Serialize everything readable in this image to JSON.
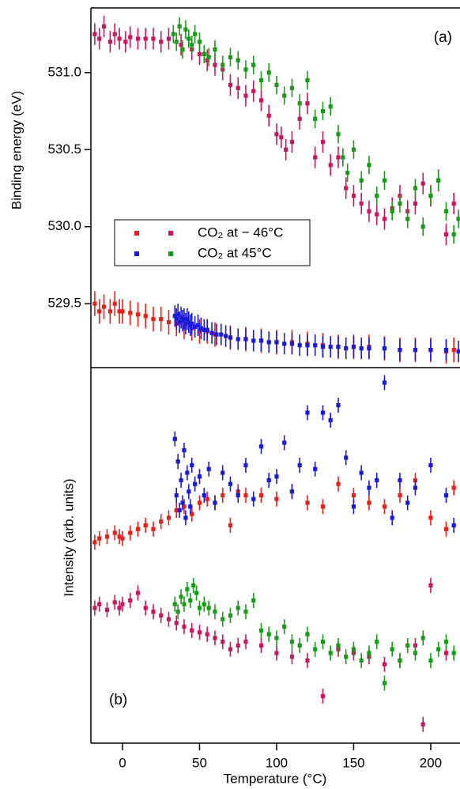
{
  "chart_data": [
    {
      "type": "scatter",
      "ylabel": "Binding energy (eV)",
      "annotation": "(a)",
      "xlim": [
        -20.5,
        219
      ],
      "ylim": [
        529.085,
        531.42
      ],
      "yticks": [
        {
          "value": 529.5,
          "label": "529.5"
        },
        {
          "value": 530.0,
          "label": "530.0"
        },
        {
          "value": 530.5,
          "label": "530.5"
        },
        {
          "value": 531.0,
          "label": "531.0"
        }
      ],
      "series": [
        {
          "name": "CO₂ at − 46°C",
          "color": "#e8201c",
          "error": 0.08,
          "x": [
            -18,
            -15,
            -12,
            -8,
            -5,
            -2,
            0,
            5,
            10,
            15,
            20,
            25,
            30,
            35,
            40,
            45,
            50,
            55,
            60,
            70,
            80,
            90,
            100,
            110,
            120,
            130,
            140,
            150,
            160,
            170,
            180,
            190,
            200,
            210,
            215
          ],
          "values": [
            529.5,
            529.45,
            529.48,
            529.45,
            529.5,
            529.45,
            529.45,
            529.44,
            529.43,
            529.42,
            529.4,
            529.4,
            529.38,
            529.37,
            529.35,
            529.34,
            529.32,
            529.32,
            529.3,
            529.28,
            529.27,
            529.26,
            529.25,
            529.25,
            529.24,
            529.23,
            529.22,
            529.22,
            529.22,
            529.21,
            529.2,
            529.2,
            529.2,
            529.19,
            529.2
          ]
        },
        {
          "name": "CO₂ at − 46°C",
          "color": "#c8175e",
          "error": 0.07,
          "x": [
            -18,
            -15,
            -12,
            -8,
            -5,
            -2,
            2,
            5,
            10,
            15,
            20,
            25,
            30,
            38,
            45,
            50,
            55,
            60,
            65,
            70,
            75,
            80,
            85,
            90,
            95,
            100,
            103,
            106,
            110,
            115,
            120,
            125,
            130,
            135,
            140,
            145,
            150,
            155,
            160,
            165,
            170,
            175,
            180,
            185,
            190,
            195,
            200,
            205,
            210,
            215
          ],
          "values": [
            531.25,
            531.22,
            531.3,
            531.2,
            531.25,
            531.22,
            531.2,
            531.23,
            531.22,
            531.22,
            531.22,
            531.2,
            531.22,
            531.18,
            531.15,
            531.12,
            531.08,
            531.05,
            531.02,
            530.92,
            530.9,
            530.85,
            530.88,
            530.82,
            530.72,
            530.6,
            530.58,
            530.5,
            530.55,
            530.7,
            530.8,
            530.45,
            530.55,
            530.4,
            530.45,
            530.25,
            530.2,
            530.15,
            530.1,
            530.08,
            530.05,
            530.12,
            530.2,
            530.1,
            530.15,
            530.28,
            530.2,
            530.3,
            529.95,
            530.15
          ]
        },
        {
          "name": "CO₂ at 45°C",
          "color": "#1a1adb",
          "error": 0.07,
          "x": [
            34,
            35,
            36,
            37,
            38,
            39,
            40,
            41,
            42,
            43,
            44,
            45,
            47,
            49,
            51,
            53,
            55,
            58,
            61,
            64,
            67,
            70,
            75,
            80,
            85,
            90,
            95,
            100,
            105,
            110,
            115,
            120,
            125,
            130,
            135,
            140,
            145,
            150,
            155,
            160,
            170,
            180,
            190,
            200,
            210,
            218
          ],
          "values": [
            529.42,
            529.4,
            529.43,
            529.38,
            529.41,
            529.39,
            529.4,
            529.37,
            529.4,
            529.38,
            529.36,
            529.37,
            529.35,
            529.36,
            529.34,
            529.33,
            529.33,
            529.31,
            529.3,
            529.3,
            529.29,
            529.28,
            529.27,
            529.27,
            529.26,
            529.26,
            529.25,
            529.25,
            529.24,
            529.24,
            529.23,
            529.23,
            529.23,
            529.22,
            529.22,
            529.22,
            529.21,
            529.22,
            529.21,
            529.21,
            529.21,
            529.2,
            529.2,
            529.2,
            529.2,
            529.19
          ]
        },
        {
          "name": "CO₂ at 45°C",
          "color": "#1a9a1a",
          "error": 0.06,
          "x": [
            33,
            35,
            37,
            39,
            41,
            43,
            45,
            47,
            50,
            53,
            56,
            60,
            65,
            70,
            75,
            80,
            85,
            90,
            95,
            100,
            105,
            110,
            115,
            120,
            125,
            130,
            135,
            140,
            143,
            146,
            150,
            155,
            160,
            165,
            170,
            175,
            180,
            185,
            190,
            195,
            200,
            205,
            210,
            215,
            218
          ],
          "values": [
            531.25,
            531.2,
            531.3,
            531.15,
            531.28,
            531.22,
            531.18,
            531.25,
            531.2,
            531.12,
            531.1,
            531.15,
            531.05,
            531.1,
            531.08,
            531.02,
            531.05,
            530.95,
            531.0,
            530.92,
            530.85,
            530.9,
            530.8,
            530.95,
            530.7,
            530.75,
            530.78,
            530.6,
            530.45,
            530.35,
            530.5,
            530.3,
            530.4,
            530.2,
            530.3,
            530.1,
            530.15,
            530.05,
            530.25,
            530.0,
            530.2,
            530.3,
            530.1,
            529.95,
            530.05
          ]
        }
      ]
    },
    {
      "type": "scatter",
      "ylabel": "Intensity (arb. units)",
      "xlabel": "Temperature (°C)",
      "annotation": "(b)",
      "xlim": [
        -20.5,
        219
      ],
      "ylim": [
        0,
        100
      ],
      "xticks": [
        0,
        50,
        100,
        150,
        200
      ],
      "series": [
        {
          "name": "CO₂ at − 46°C",
          "color": "#e8201c",
          "error": 2,
          "x": [
            -18,
            -15,
            -10,
            -5,
            -2,
            0,
            5,
            10,
            15,
            20,
            25,
            30,
            35,
            40,
            45,
            50,
            55,
            60,
            65,
            70,
            75,
            80,
            90,
            100,
            110,
            120,
            130,
            140,
            150,
            160,
            170,
            180,
            190,
            200,
            210,
            215
          ],
          "values": [
            53.5,
            54.5,
            55,
            56,
            55,
            54.5,
            56,
            57,
            58,
            57,
            59,
            60,
            62,
            63,
            61,
            64,
            65,
            64,
            66,
            58,
            67,
            66,
            66,
            65,
            67,
            64,
            63,
            69,
            66,
            64,
            63,
            66,
            70,
            60,
            57,
            68
          ]
        },
        {
          "name": "CO₂ at − 46°C",
          "color": "#c8175e",
          "error": 2,
          "x": [
            -18,
            -15,
            -10,
            -5,
            -2,
            0,
            5,
            10,
            15,
            20,
            25,
            30,
            35,
            40,
            45,
            50,
            55,
            60,
            65,
            70,
            75,
            80,
            90,
            100,
            110,
            120,
            130,
            140,
            150,
            160,
            170,
            180,
            190,
            195,
            200,
            210
          ],
          "values": [
            36,
            37,
            35.5,
            37.5,
            36,
            37,
            38,
            40,
            36,
            35,
            34,
            33,
            32,
            31,
            30,
            29.5,
            29,
            28,
            27,
            25,
            26,
            27,
            26,
            24,
            23,
            22,
            12.5,
            25,
            24,
            23,
            21,
            22,
            26,
            5,
            42,
            24
          ]
        },
        {
          "name": "CO₂ at 45°C",
          "color": "#1a1adb",
          "error": 2,
          "x": [
            34,
            35,
            36,
            37,
            38,
            39,
            40,
            41,
            42,
            43,
            44,
            45,
            47,
            50,
            53,
            56,
            60,
            65,
            70,
            75,
            80,
            85,
            90,
            95,
            100,
            105,
            110,
            115,
            120,
            125,
            130,
            135,
            140,
            145,
            150,
            155,
            160,
            165,
            170,
            175,
            180,
            185,
            190,
            200,
            210,
            215
          ],
          "values": [
            81,
            66,
            75,
            62,
            70,
            64,
            78,
            60,
            72,
            67,
            63,
            74,
            69,
            71,
            66,
            73,
            64,
            72,
            69,
            66,
            74,
            65,
            79,
            70,
            71,
            80,
            67,
            74,
            88,
            73,
            88,
            86,
            90,
            76,
            63,
            72,
            68,
            70,
            96,
            60,
            70,
            64,
            68,
            74,
            66,
            58
          ]
        },
        {
          "name": "CO₂ at 45°C",
          "color": "#1a9a1a",
          "error": 2,
          "x": [
            34,
            36,
            38,
            40,
            42,
            44,
            46,
            48,
            50,
            53,
            56,
            60,
            65,
            70,
            75,
            80,
            85,
            90,
            95,
            100,
            105,
            110,
            115,
            120,
            125,
            130,
            135,
            140,
            145,
            150,
            155,
            160,
            165,
            170,
            175,
            180,
            185,
            190,
            195,
            200,
            205,
            210,
            215
          ],
          "values": [
            37,
            35,
            39,
            37,
            41,
            38,
            42,
            40,
            36,
            37,
            36,
            35,
            33,
            34,
            36,
            35,
            38,
            30,
            29,
            28,
            31,
            27,
            26,
            29,
            25,
            27,
            24,
            26,
            23,
            25,
            22,
            24,
            27,
            16,
            25,
            22,
            26,
            24,
            28,
            22,
            25,
            27,
            24
          ]
        }
      ]
    }
  ]
}
